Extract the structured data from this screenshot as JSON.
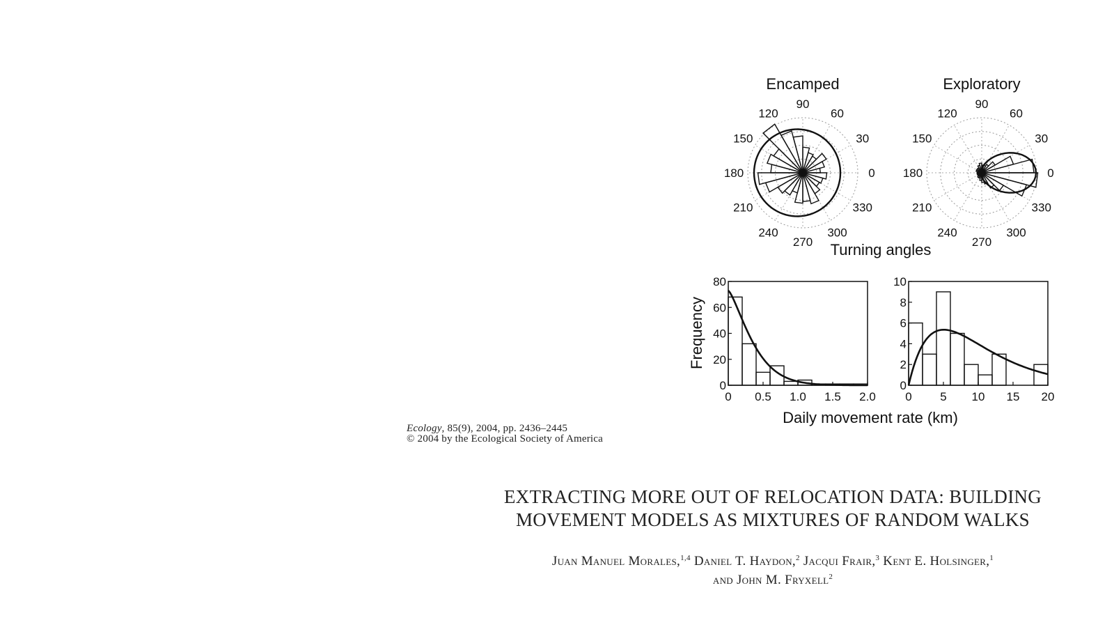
{
  "chart_data": [
    {
      "type": "polar-histogram",
      "title": "Encamped",
      "angle_ticks": [
        "0",
        "30",
        "60",
        "90",
        "120",
        "150",
        "180",
        "210",
        "240",
        "270",
        "300",
        "330"
      ],
      "bins_deg": [
        0,
        15,
        30,
        45,
        60,
        75,
        90,
        105,
        120,
        135,
        150,
        165,
        180,
        195,
        210,
        225,
        240,
        255,
        270,
        285,
        300,
        315,
        330,
        345
      ],
      "values": [
        0.55,
        0.7,
        0.85,
        0.6,
        0.65,
        0.8,
        1.15,
        1.35,
        1.75,
        1.05,
        1.15,
        1.0,
        1.4,
        1.2,
        0.9,
        0.8,
        0.65,
        0.95,
        0.9,
        1.0,
        0.75,
        0.6,
        0.65,
        0.75
      ],
      "fitted_curve": "roughly uniform, slightly larger toward 180",
      "grid": true
    },
    {
      "type": "polar-histogram",
      "title": "Exploratory",
      "angle_ticks": [
        "0",
        "30",
        "60",
        "90",
        "120",
        "150",
        "180",
        "210",
        "240",
        "270",
        "300",
        "330"
      ],
      "bins_deg": [
        0,
        15,
        30,
        45,
        60,
        75,
        90,
        105,
        120,
        135,
        150,
        165,
        180,
        195,
        210,
        225,
        240,
        255,
        270,
        285,
        300,
        315,
        330,
        345
      ],
      "values": [
        1.35,
        0.85,
        0.4,
        0.25,
        0.2,
        0.2,
        0.25,
        0.2,
        0.15,
        0.15,
        0.15,
        0.12,
        0.12,
        0.12,
        0.12,
        0.15,
        0.15,
        0.2,
        0.25,
        0.3,
        0.45,
        0.65,
        1.2,
        1.45
      ],
      "fitted_curve": "concentrated around 0",
      "grid": true
    },
    {
      "type": "bar",
      "panel": "encamped-steps",
      "bin_edges": [
        0,
        0.2,
        0.4,
        0.6,
        0.8,
        1.0,
        1.2,
        1.4,
        1.6,
        1.8,
        2.0
      ],
      "values": [
        68,
        32,
        10,
        15,
        3,
        4,
        1,
        1,
        1,
        1
      ],
      "xlim": [
        0,
        2.0
      ],
      "ylim": [
        0,
        80
      ],
      "xticks": [
        "0",
        "0.5",
        "1.0",
        "1.5",
        "2.0"
      ],
      "yticks": [
        "0",
        "20",
        "40",
        "60",
        "80"
      ],
      "ylabel": "Frequency",
      "fitted_curve": "decreasing from ~73 at 0"
    },
    {
      "type": "bar",
      "panel": "exploratory-steps",
      "bin_edges": [
        0,
        2,
        4,
        6,
        8,
        10,
        12,
        14,
        16,
        18,
        20
      ],
      "values": [
        6,
        3,
        9,
        5,
        2,
        1,
        3,
        0,
        0,
        2
      ],
      "xlim": [
        0,
        20
      ],
      "ylim": [
        0,
        10
      ],
      "xticks": [
        "0",
        "5",
        "10",
        "15",
        "20"
      ],
      "yticks": [
        "0",
        "2",
        "4",
        "6",
        "8",
        "10"
      ],
      "fitted_curve": "hump peaking ~5.5 near x=5"
    }
  ],
  "figure": {
    "polar_caption": "Turning angles",
    "x_caption": "Daily movement rate (km)"
  },
  "citation": {
    "journal": "Ecology",
    "details": ", 85(9), 2004, pp. 2436–2445",
    "copyright": "© 2004 by the Ecological Society of America"
  },
  "paper": {
    "title_line1": "EXTRACTING MORE OUT OF RELOCATION DATA: BUILDING",
    "title_line2": "MOVEMENT MODELS AS MIXTURES OF RANDOM WALKS",
    "authors": [
      {
        "name": "Juan Manuel Morales,",
        "sup": "1,4"
      },
      {
        "name": "Daniel T. Haydon,",
        "sup": "2"
      },
      {
        "name": "Jacqui Frair,",
        "sup": "3"
      },
      {
        "name": "Kent E. Holsinger,",
        "sup": "1"
      },
      {
        "name": "and John M. Fryxell",
        "sup": "2"
      }
    ]
  }
}
